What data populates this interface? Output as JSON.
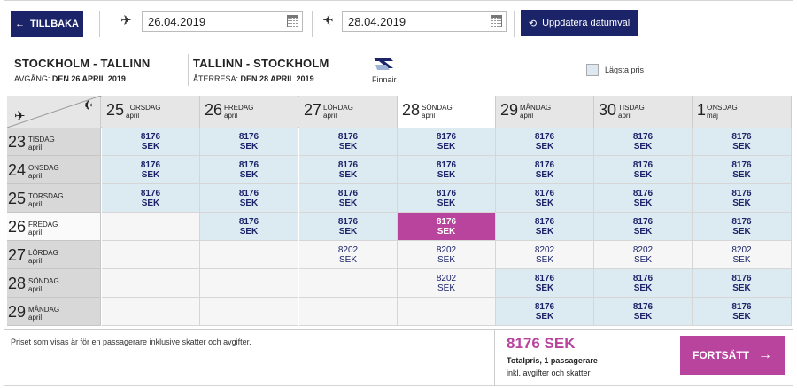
{
  "toolbar": {
    "back_label": "TILLBAKA",
    "outbound_date": "26.04.2019",
    "return_date": "28.04.2019",
    "update_label": "Uppdatera datumval"
  },
  "route": {
    "outbound_title": "STOCKHOLM - TALLINN",
    "outbound_prefix": "AVGÅNG:",
    "outbound_date": "DEN 26 APRIL 2019",
    "return_title": "TALLINN - STOCKHOLM",
    "return_prefix": "ÅTERRESA:",
    "return_date": "DEN 28 APRIL 2019",
    "airline": "Finnair",
    "lowest_price_label": "Lägsta pris"
  },
  "columns": [
    {
      "num": "25",
      "day": "TORSDAG",
      "month": "april"
    },
    {
      "num": "26",
      "day": "FREDAG",
      "month": "april"
    },
    {
      "num": "27",
      "day": "LÖRDAG",
      "month": "april"
    },
    {
      "num": "28",
      "day": "SÖNDAG",
      "month": "april"
    },
    {
      "num": "29",
      "day": "MÅNDAG",
      "month": "april"
    },
    {
      "num": "30",
      "day": "TISDAG",
      "month": "april"
    },
    {
      "num": "1",
      "day": "ONSDAG",
      "month": "maj"
    }
  ],
  "rows": [
    {
      "num": "23",
      "day": "TISDAG",
      "month": "april"
    },
    {
      "num": "24",
      "day": "ONSDAG",
      "month": "april"
    },
    {
      "num": "25",
      "day": "TORSDAG",
      "month": "april"
    },
    {
      "num": "26",
      "day": "FREDAG",
      "month": "april"
    },
    {
      "num": "27",
      "day": "LÖRDAG",
      "month": "april"
    },
    {
      "num": "28",
      "day": "SÖNDAG",
      "month": "april"
    },
    {
      "num": "29",
      "day": "MÅNDAG",
      "month": "april"
    }
  ],
  "currency": "SEK",
  "grid": [
    [
      "8176",
      "8176",
      "8176",
      "8176",
      "8176",
      "8176",
      "8176"
    ],
    [
      "8176",
      "8176",
      "8176",
      "8176",
      "8176",
      "8176",
      "8176"
    ],
    [
      "8176",
      "8176",
      "8176",
      "8176",
      "8176",
      "8176",
      "8176"
    ],
    [
      "",
      "8176",
      "8176",
      "8176",
      "8176",
      "8176",
      "8176"
    ],
    [
      "",
      "",
      "8202",
      "8202",
      "8202",
      "8202",
      "8202"
    ],
    [
      "",
      "",
      "",
      "8202",
      "8176",
      "8176",
      "8176"
    ],
    [
      "",
      "",
      "",
      "",
      "8176",
      "8176",
      "8176"
    ]
  ],
  "cell_styles": [
    [
      "a",
      "a",
      "a",
      "a",
      "a",
      "a",
      "a"
    ],
    [
      "a",
      "a",
      "a",
      "a",
      "a",
      "a",
      "a"
    ],
    [
      "a",
      "a",
      "a",
      "a",
      "a",
      "a",
      "a"
    ],
    [
      "e",
      "a",
      "a",
      "s",
      "a",
      "a",
      "a"
    ],
    [
      "e",
      "e",
      "p",
      "p",
      "p",
      "p",
      "p"
    ],
    [
      "e",
      "e",
      "e",
      "p",
      "a",
      "a",
      "a"
    ],
    [
      "e",
      "e",
      "e",
      "e",
      "a",
      "a",
      "a"
    ]
  ],
  "footer": {
    "note": "Priset som visas är för en passagerare inklusive skatter och avgifter.",
    "price": "8176 SEK",
    "total_label": "Totalpris, 1 passagerare",
    "tax_label": "inkl. avgifter och skatter",
    "continue_label": "FORTSÄTT"
  },
  "colors": {
    "navy": "#1b2369",
    "accent": "#b9449e",
    "available": "#dceaf2"
  },
  "selected": {
    "row": 3,
    "col": 3
  }
}
